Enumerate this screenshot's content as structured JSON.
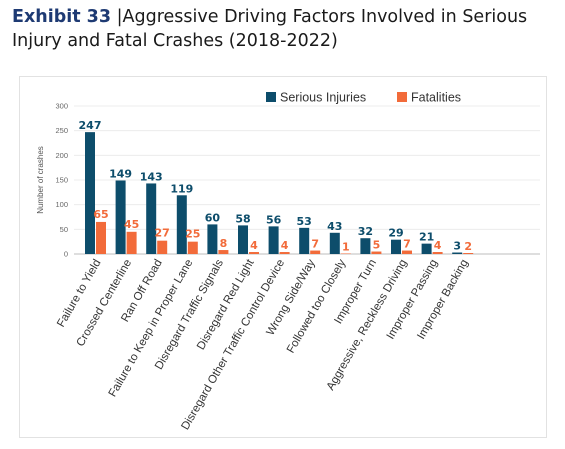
{
  "header": {
    "label": "Exhibit 33",
    "separator": " |",
    "title": "Aggressive Driving Factors Involved in Serious Injury and Fatal Crashes (2018-2022)"
  },
  "colors": {
    "serious": "#0d4d6b",
    "fatal": "#f26b3a"
  },
  "chart_data": {
    "type": "bar",
    "title": "",
    "xlabel": "",
    "ylabel": "Number of crashes",
    "ylim": [
      0,
      300
    ],
    "yticks": [
      0,
      50,
      100,
      150,
      200,
      250,
      300
    ],
    "grid": true,
    "legend_position": "top-right",
    "categories": [
      "Failure to Yield",
      "Crossed Centerline",
      "Ran Off Road",
      "Failure to Keep in Proper Lane",
      "Disregard Traffic Signals",
      "Disregard Red Light",
      "Disregard Other Traffic Control Device",
      "Wrong Side/Way",
      "Followed too Closely",
      "Improper Turn",
      "Aggressive, Reckless Driving",
      "Improper Passing",
      "Improper Backing"
    ],
    "series": [
      {
        "name": "Serious Injuries",
        "values": [
          247,
          149,
          143,
          119,
          60,
          58,
          56,
          53,
          43,
          32,
          29,
          21,
          3
        ]
      },
      {
        "name": "Fatalities",
        "values": [
          65,
          45,
          27,
          25,
          8,
          4,
          4,
          7,
          1,
          5,
          7,
          4,
          2
        ]
      }
    ]
  }
}
